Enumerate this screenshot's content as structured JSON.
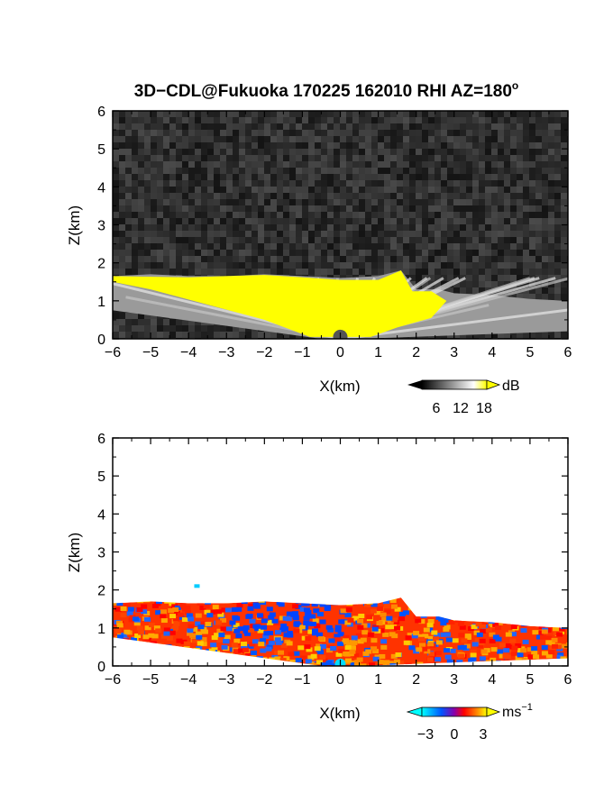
{
  "chart_data": {
    "title": "3D−CDL@Fukuoka 170225 162010 RHI AZ=180",
    "title_superscript": "o",
    "panels": [
      {
        "type": "heatmap",
        "quantity": "backscatter",
        "xlabel": "X(km)",
        "ylabel": "Z(km)",
        "xlim": [
          -6,
          6
        ],
        "ylim": [
          0,
          6
        ],
        "xticks": [
          "−6",
          "−5",
          "−4",
          "−3",
          "−2",
          "−1",
          "0",
          "1",
          "2",
          "3",
          "4",
          "5",
          "6"
        ],
        "yticks": [
          "0",
          "1",
          "2",
          "3",
          "4",
          "5",
          "6"
        ],
        "background": "noise (dark gray)",
        "colorbar": {
          "unit": "dB",
          "ticks": [
            "6",
            "12",
            "18"
          ],
          "colors": [
            "#000000",
            "#ffffff",
            "#ffff00"
          ]
        },
        "echo_top_km": [
          {
            "x": -6.0,
            "z": 1.65
          },
          {
            "x": -5.0,
            "z": 1.7
          },
          {
            "x": -4.0,
            "z": 1.65
          },
          {
            "x": -3.0,
            "z": 1.65
          },
          {
            "x": -2.0,
            "z": 1.7
          },
          {
            "x": -1.0,
            "z": 1.65
          },
          {
            "x": 0.0,
            "z": 1.6
          },
          {
            "x": 1.0,
            "z": 1.65
          },
          {
            "x": 1.6,
            "z": 1.8
          },
          {
            "x": 2.0,
            "z": 1.3
          },
          {
            "x": 2.6,
            "z": 1.3
          },
          {
            "x": 3.0,
            "z": 1.2
          },
          {
            "x": 4.0,
            "z": 1.15
          },
          {
            "x": 5.0,
            "z": 1.05
          },
          {
            "x": 6.0,
            "z": 1.0
          }
        ]
      },
      {
        "type": "heatmap",
        "quantity": "radial_velocity",
        "xlabel": "X(km)",
        "ylabel": "Z(km)",
        "xlim": [
          -6,
          6
        ],
        "ylim": [
          0,
          6
        ],
        "xticks": [
          "−6",
          "−5",
          "−4",
          "−3",
          "−2",
          "−1",
          "0",
          "1",
          "2",
          "3",
          "4",
          "5",
          "6"
        ],
        "yticks": [
          "0",
          "1",
          "2",
          "3",
          "4",
          "5",
          "6"
        ],
        "background": "white",
        "colorbar": {
          "unit": "ms",
          "unit_superscript": "−1",
          "ticks": [
            "−3",
            "0",
            "3"
          ],
          "colors": [
            "#00ffff",
            "#0055ff",
            "#ff0000",
            "#ffff00"
          ]
        },
        "echo_top_km": [
          {
            "x": -6.0,
            "z": 1.65
          },
          {
            "x": -5.0,
            "z": 1.7
          },
          {
            "x": -4.0,
            "z": 1.65
          },
          {
            "x": -3.0,
            "z": 1.65
          },
          {
            "x": -2.0,
            "z": 1.7
          },
          {
            "x": -1.0,
            "z": 1.65
          },
          {
            "x": 0.0,
            "z": 1.6
          },
          {
            "x": 1.0,
            "z": 1.65
          },
          {
            "x": 1.6,
            "z": 1.8
          },
          {
            "x": 2.0,
            "z": 1.3
          },
          {
            "x": 2.6,
            "z": 1.3
          },
          {
            "x": 3.0,
            "z": 1.2
          },
          {
            "x": 4.0,
            "z": 1.15
          },
          {
            "x": 5.0,
            "z": 1.05
          },
          {
            "x": 6.0,
            "z": 1.0
          }
        ]
      }
    ]
  }
}
